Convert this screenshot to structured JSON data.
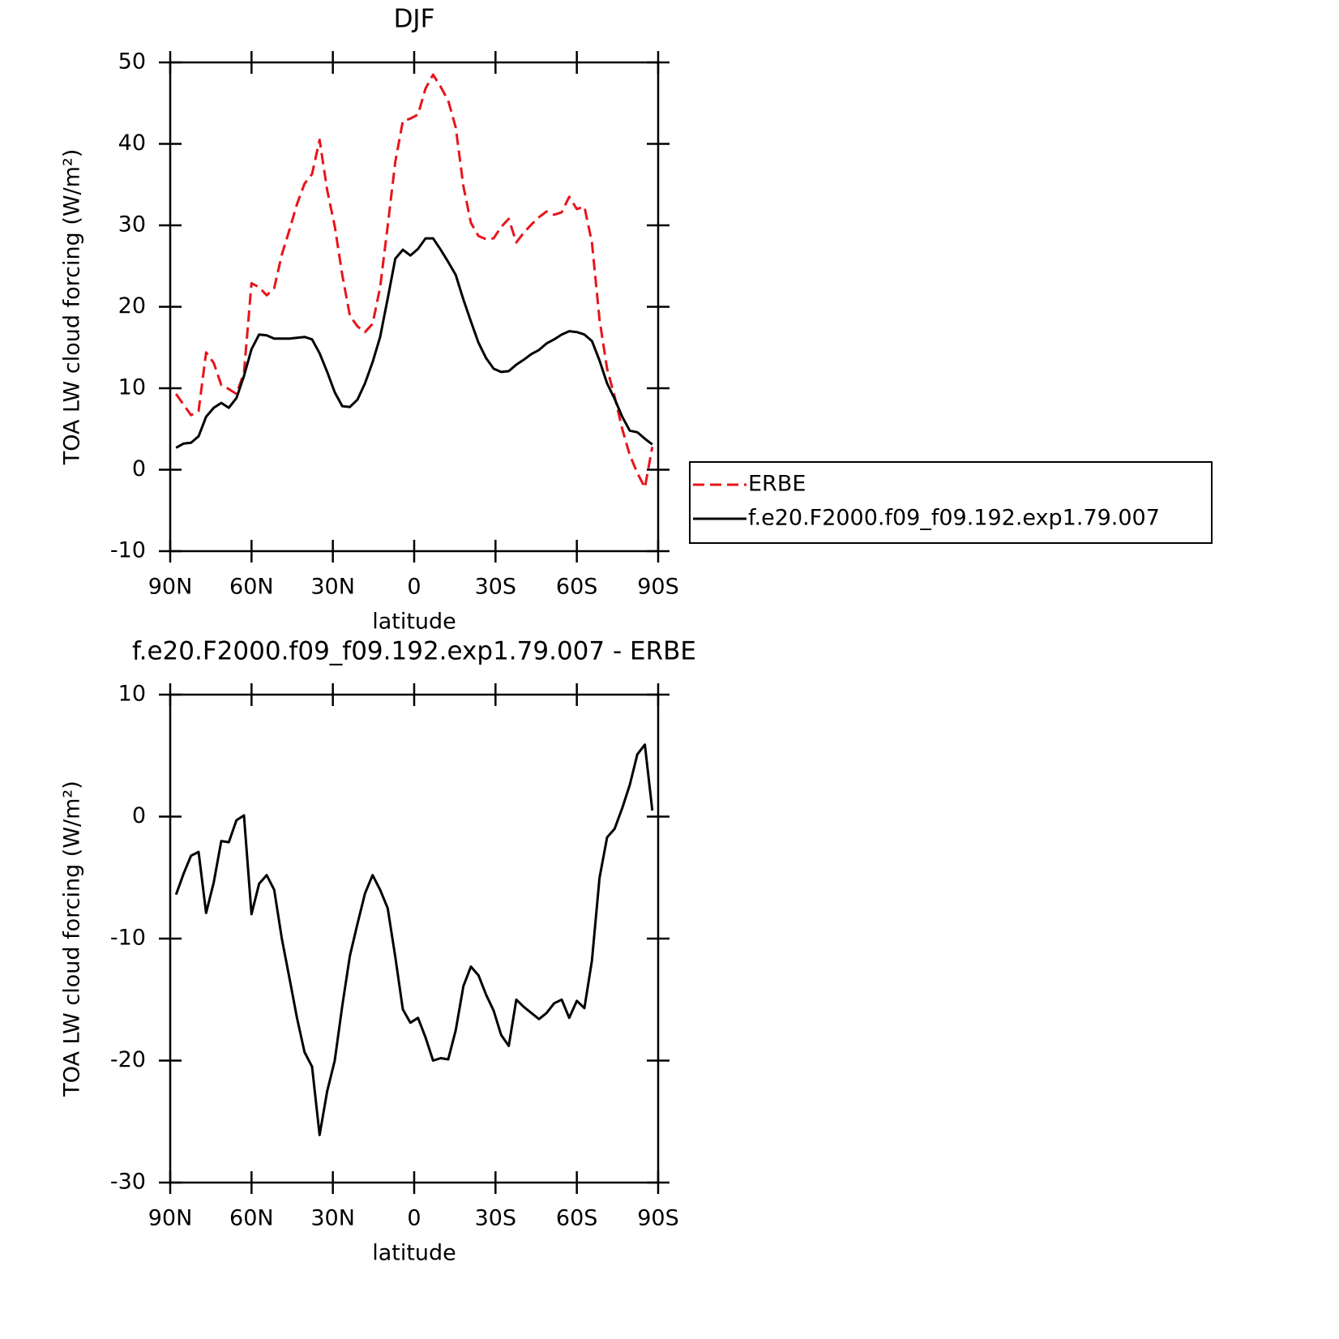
{
  "chart_data": [
    {
      "type": "line",
      "title": "DJF",
      "x_label": "latitude",
      "y_label": "TOA LW cloud forcing (W/m²)",
      "x": [
        87.86,
        85.1,
        82.31,
        79.53,
        76.74,
        73.95,
        71.16,
        68.37,
        65.58,
        62.79,
        60.0,
        57.21,
        54.42,
        51.63,
        48.84,
        46.04,
        43.25,
        40.46,
        37.67,
        34.88,
        32.09,
        29.3,
        26.51,
        23.72,
        20.93,
        18.14,
        15.35,
        12.56,
        9.77,
        6.98,
        4.19,
        1.4,
        -1.4,
        -4.19,
        -6.98,
        -9.77,
        -12.56,
        -15.35,
        -18.14,
        -20.93,
        -23.72,
        -26.51,
        -29.3,
        -32.09,
        -34.88,
        -37.67,
        -40.46,
        -43.25,
        -46.04,
        -48.84,
        -51.63,
        -54.42,
        -57.21,
        -60.0,
        -62.79,
        -65.58,
        -68.37,
        -71.16,
        -73.95,
        -76.74,
        -79.53,
        -82.31,
        -85.1,
        -87.86
      ],
      "series": [
        {
          "name": "ERBE",
          "color": "#e8141a",
          "linestyle": "dashed",
          "values": [
            9.3,
            8.0,
            6.7,
            7.2,
            14.4,
            13.1,
            10.4,
            9.9,
            9.3,
            11.9,
            22.9,
            22.4,
            21.4,
            22.3,
            26.4,
            29.4,
            32.6,
            35.1,
            36.3,
            40.5,
            34.3,
            29.9,
            23.9,
            18.9,
            17.6,
            16.9,
            17.9,
            22.4,
            29.9,
            37.8,
            42.8,
            43.1,
            43.6,
            46.8,
            48.5,
            47.0,
            45.3,
            42.0,
            34.8,
            30.3,
            28.7,
            28.3,
            28.4,
            29.8,
            30.8,
            27.9,
            29.1,
            30.1,
            31.0,
            31.7,
            31.3,
            31.6,
            33.5,
            32.0,
            32.3,
            27.9,
            18.4,
            12.4,
            9.0,
            5.0,
            1.8,
            -0.4,
            -2.2,
            2.8
          ]
        },
        {
          "name": "f.e20.F2000.f09_f09.192.exp1.79.007",
          "color": "#000000",
          "linestyle": "solid",
          "values": [
            2.7,
            3.2,
            3.3,
            4.1,
            6.5,
            7.6,
            8.2,
            7.6,
            8.8,
            11.5,
            14.8,
            16.6,
            16.5,
            16.1,
            16.1,
            16.1,
            16.2,
            16.3,
            16.0,
            14.3,
            12.0,
            9.5,
            7.8,
            7.7,
            8.6,
            10.6,
            13.2,
            16.3,
            21.0,
            25.9,
            27.0,
            26.3,
            27.1,
            28.4,
            28.4,
            27.0,
            25.5,
            23.9,
            20.9,
            18.2,
            15.6,
            13.7,
            12.4,
            12.0,
            12.1,
            12.9,
            13.5,
            14.2,
            14.7,
            15.5,
            16.0,
            16.6,
            17.0,
            16.9,
            16.6,
            15.8,
            13.4,
            10.6,
            8.7,
            6.5,
            4.8,
            4.6,
            3.8,
            3.1
          ]
        }
      ],
      "xlim": [
        90,
        -90
      ],
      "xticks": [
        {
          "value": 90,
          "label": "90N"
        },
        {
          "value": 60,
          "label": "60N"
        },
        {
          "value": 30,
          "label": "30N"
        },
        0,
        {
          "value": -30,
          "label": "30S"
        },
        {
          "value": -60,
          "label": "60S"
        },
        {
          "value": -90,
          "label": "90S"
        }
      ],
      "ylim": [
        -10,
        50
      ],
      "yticks": [
        -10,
        0,
        10,
        20,
        30,
        40,
        50
      ],
      "legend": "right"
    },
    {
      "type": "line",
      "title": "f.e20.F2000.f09_f09.192.exp1.79.007 - ERBE",
      "x_label": "latitude",
      "y_label": "TOA LW cloud forcing (W/m²)",
      "x": [
        87.86,
        85.1,
        82.31,
        79.53,
        76.74,
        73.95,
        71.16,
        68.37,
        65.58,
        62.79,
        60.0,
        57.21,
        54.42,
        51.63,
        48.84,
        46.04,
        43.25,
        40.46,
        37.67,
        34.88,
        32.09,
        29.3,
        26.51,
        23.72,
        20.93,
        18.14,
        15.35,
        12.56,
        9.77,
        6.98,
        4.19,
        1.4,
        -1.4,
        -4.19,
        -6.98,
        -9.77,
        -12.56,
        -15.35,
        -18.14,
        -20.93,
        -23.72,
        -26.51,
        -29.3,
        -32.09,
        -34.88,
        -37.67,
        -40.46,
        -43.25,
        -46.04,
        -48.84,
        -51.63,
        -54.42,
        -57.21,
        -60.0,
        -62.79,
        -65.58,
        -68.37,
        -71.16,
        -73.95,
        -76.74,
        -79.53,
        -82.31,
        -85.1,
        -87.86
      ],
      "values": [
        -6.4,
        -4.7,
        -3.2,
        -2.9,
        -7.9,
        -5.4,
        -2.0,
        -2.1,
        -0.3,
        0.1,
        -8.0,
        -5.5,
        -4.8,
        -6.0,
        -10.0,
        -13.2,
        -16.5,
        -19.3,
        -20.5,
        -26.1,
        -22.5,
        -20.0,
        -15.5,
        -11.4,
        -8.8,
        -6.3,
        -4.8,
        -6.0,
        -7.5,
        -11.5,
        -15.8,
        -16.9,
        -16.5,
        -18.1,
        -20.0,
        -19.8,
        -19.9,
        -17.5,
        -13.9,
        -12.3,
        -13.0,
        -14.6,
        -15.9,
        -17.9,
        -18.8,
        -15.0,
        -15.6,
        -16.1,
        -16.6,
        -16.1,
        -15.3,
        -15.0,
        -16.5,
        -15.1,
        -15.7,
        -11.8,
        -5.0,
        -1.7,
        -1.0,
        0.7,
        2.6,
        5.1,
        5.9,
        0.5
      ],
      "color": "#000000",
      "xlim": [
        90,
        -90
      ],
      "xticks": [
        {
          "value": 90,
          "label": "90N"
        },
        {
          "value": 60,
          "label": "60N"
        },
        {
          "value": 30,
          "label": "30N"
        },
        0,
        {
          "value": -30,
          "label": "30S"
        },
        {
          "value": -60,
          "label": "60S"
        },
        {
          "value": -90,
          "label": "90S"
        }
      ],
      "ylim": [
        -30,
        10
      ],
      "yticks": [
        -30,
        -20,
        -10,
        0,
        10
      ]
    }
  ]
}
